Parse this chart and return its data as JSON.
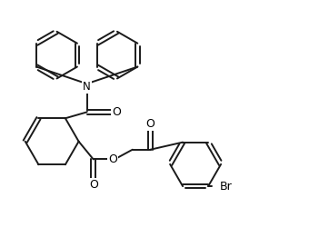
{
  "bg_color": "#ffffff",
  "line_color": "#1a1a1a",
  "line_width": 1.4,
  "text_color": "#000000",
  "font_size": 8.5,
  "figsize": [
    3.62,
    2.72
  ],
  "dpi": 100,
  "xlim": [
    0,
    10
  ],
  "ylim": [
    0,
    7.5
  ]
}
